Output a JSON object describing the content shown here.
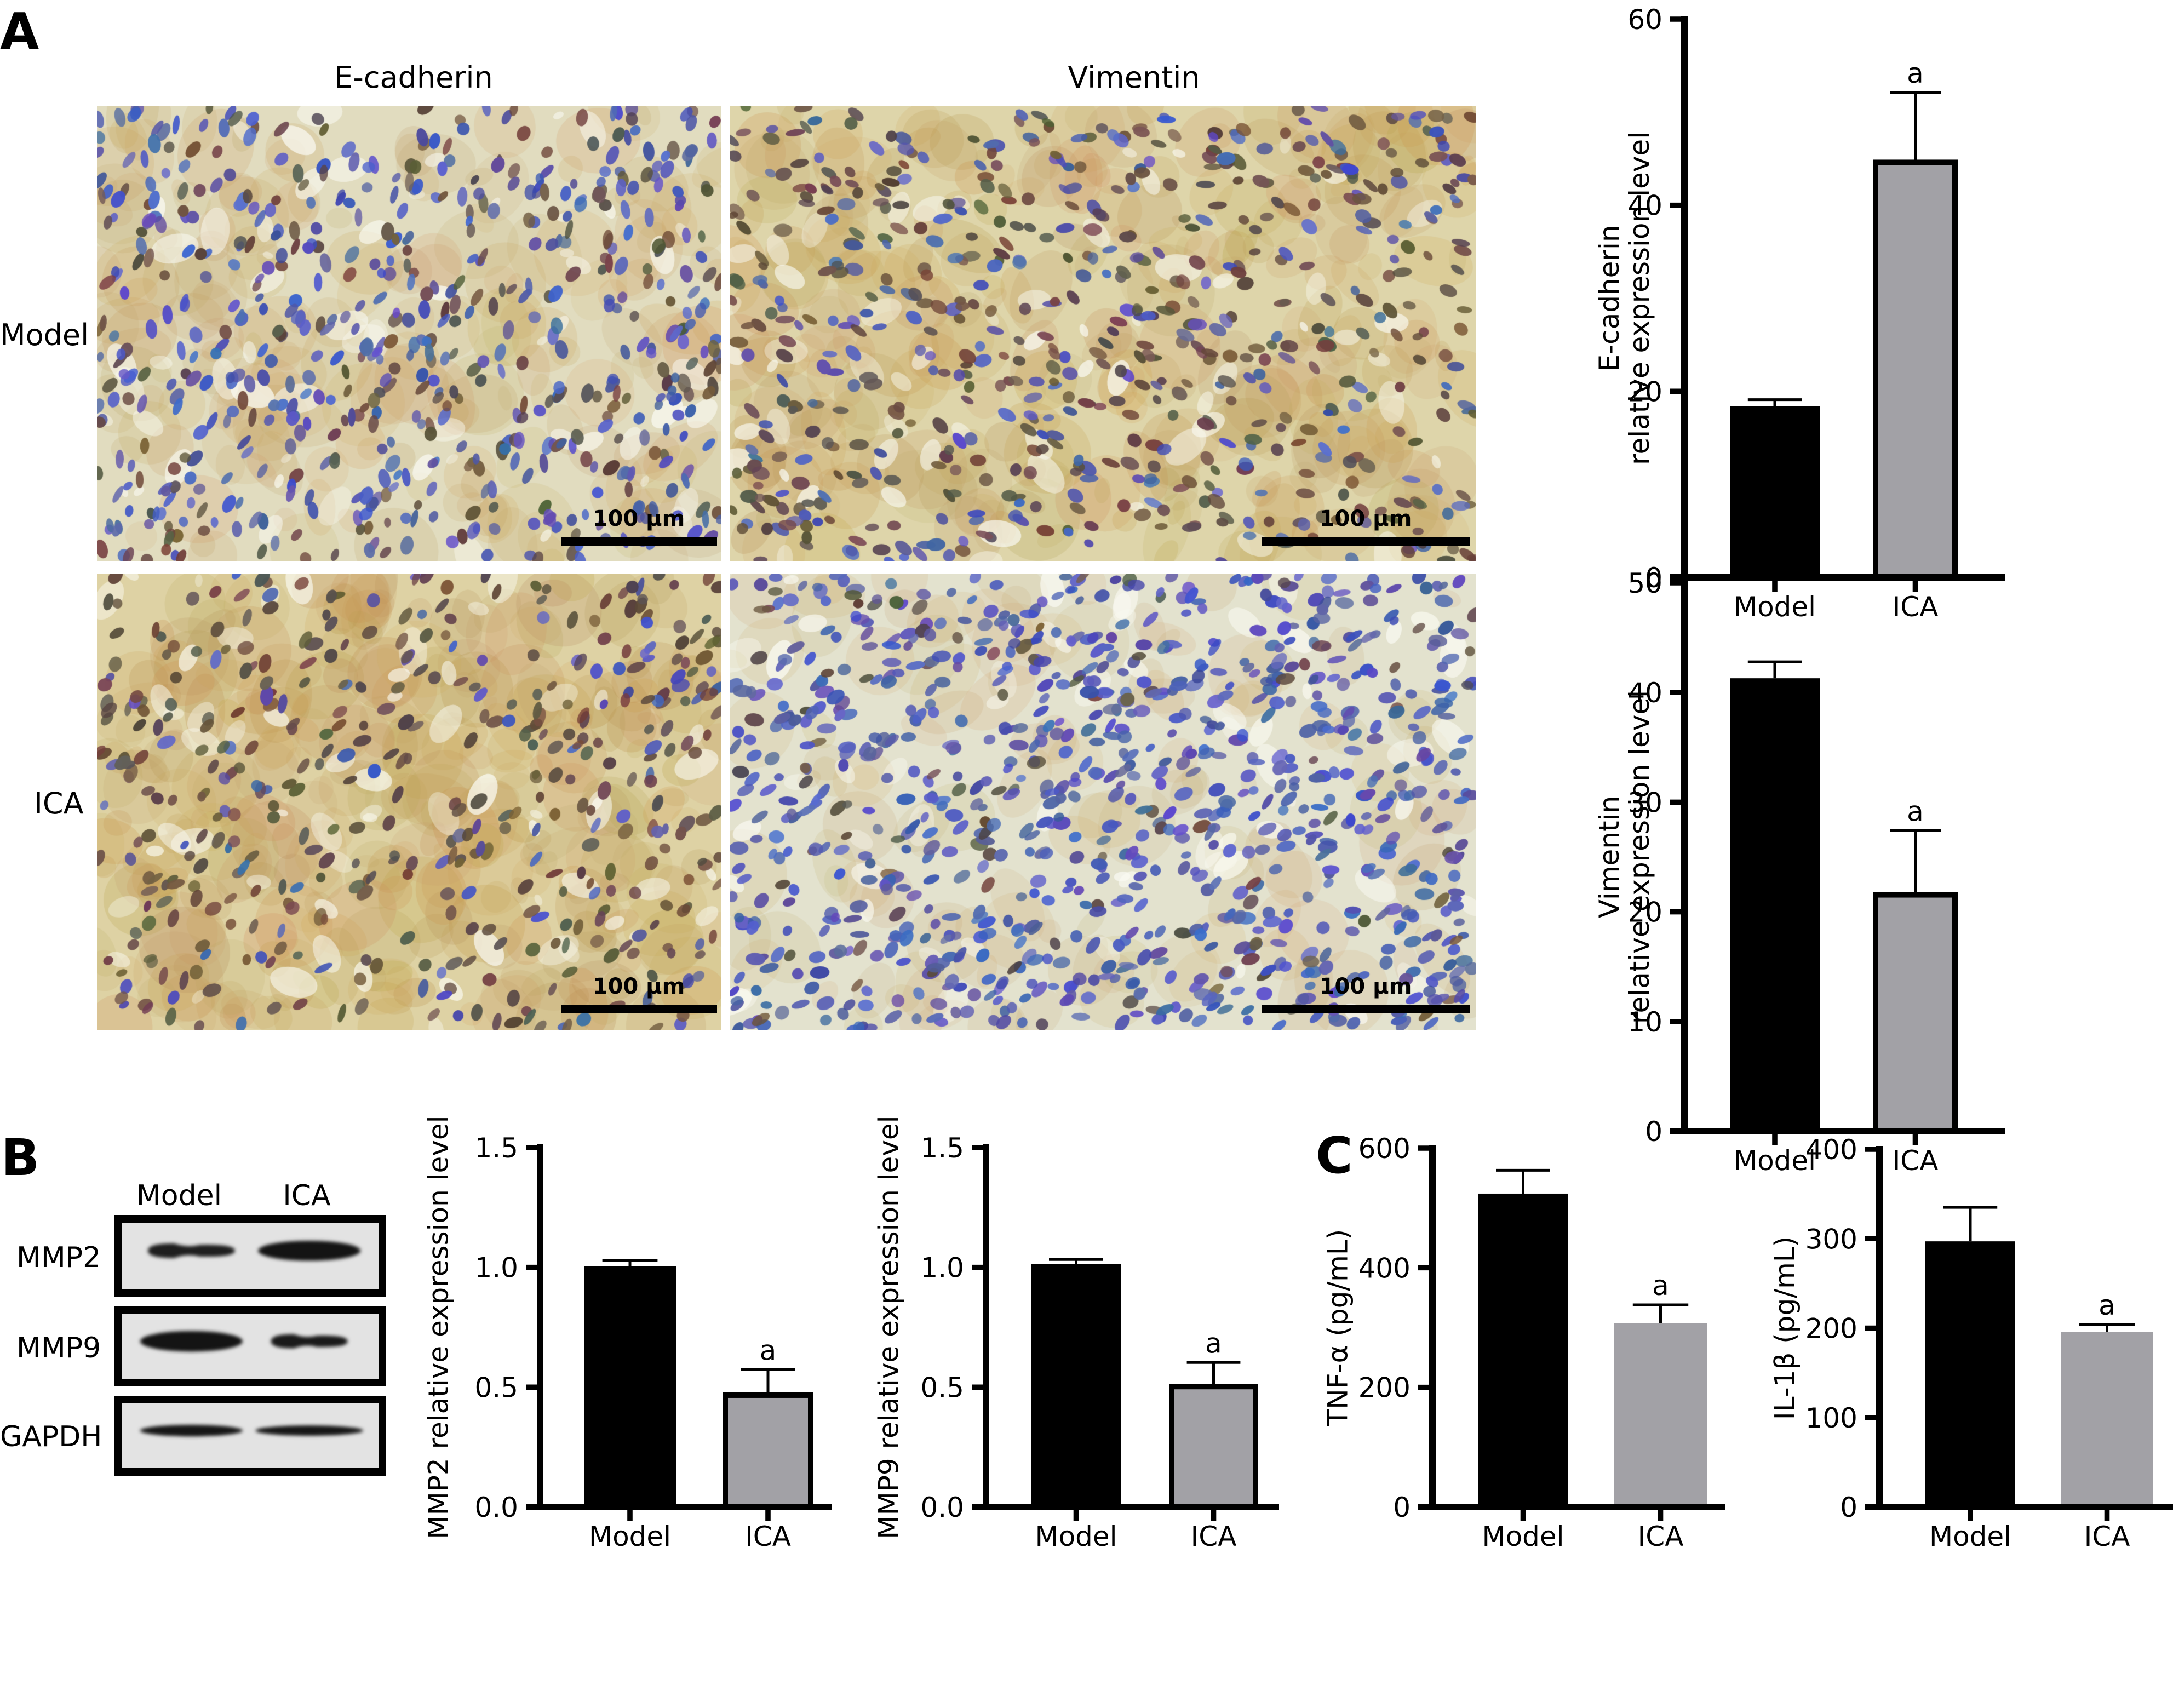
{
  "figure": {
    "panel_labels": {
      "A": "A",
      "B": "B",
      "C": "C"
    },
    "panel_a": {
      "column_headers": [
        "E-cadherin",
        "Vimentin"
      ],
      "row_labels": [
        "Model",
        "ICA"
      ],
      "scale_bar_label": "100 μm",
      "micrographs": [
        {
          "id": "ecad-model",
          "stain": "E-cadherin",
          "group": "Model",
          "brown": 0.35,
          "blue": 0.65,
          "density": 1.0,
          "seed": 11
        },
        {
          "id": "vim-model",
          "stain": "Vimentin",
          "group": "Model",
          "brown": 0.7,
          "blue": 0.3,
          "density": 0.85,
          "seed": 23
        },
        {
          "id": "ecad-ica",
          "stain": "E-cadherin",
          "group": "ICA",
          "brown": 0.8,
          "blue": 0.2,
          "density": 0.7,
          "seed": 37
        },
        {
          "id": "vim-ica",
          "stain": "Vimentin",
          "group": "ICA",
          "brown": 0.1,
          "blue": 0.9,
          "density": 1.25,
          "seed": 51
        }
      ]
    },
    "panel_b": {
      "lane_labels": [
        "Model",
        "ICA"
      ],
      "blot_rows": [
        {
          "label": "MMP2",
          "bands": [
            {
              "intensity": 0.75,
              "width": 0.34,
              "thickness": 0.22,
              "pinch": true
            },
            {
              "intensity": 1.0,
              "width": 0.4,
              "thickness": 0.3,
              "pinch": false
            }
          ]
        },
        {
          "label": "MMP9",
          "bands": [
            {
              "intensity": 1.0,
              "width": 0.4,
              "thickness": 0.32,
              "pinch": false
            },
            {
              "intensity": 0.85,
              "width": 0.3,
              "thickness": 0.22,
              "pinch": true
            }
          ]
        },
        {
          "label": "GAPDH",
          "bands": [
            {
              "intensity": 0.95,
              "width": 0.4,
              "thickness": 0.18,
              "pinch": false
            },
            {
              "intensity": 0.95,
              "width": 0.42,
              "thickness": 0.16,
              "pinch": false
            }
          ]
        }
      ]
    }
  },
  "colors": {
    "model_bar": "#000000",
    "ica_bar": "#a2a1a6",
    "axis": "#000000",
    "blot_background": "#e3e3e3"
  },
  "chart_data": [
    {
      "id": "ecad",
      "type": "bar",
      "title": "",
      "xlabel": "",
      "ylabel": [
        "E-cadherin",
        "relative expression level"
      ],
      "categories": [
        "Model",
        "ICA"
      ],
      "values": [
        18.4,
        44.9
      ],
      "error": [
        0.7,
        7.2
      ],
      "significance": [
        "",
        "a"
      ],
      "ylim": [
        0,
        60
      ],
      "yticks": [
        0,
        20,
        40,
        60
      ],
      "ytick_labels": [
        "0",
        "20",
        "40",
        "60"
      ],
      "grid": false,
      "legend": "none",
      "ica_outlined": true
    },
    {
      "id": "vim",
      "type": "bar",
      "title": "",
      "xlabel": "",
      "ylabel": [
        "Vimentin",
        "relative expression level"
      ],
      "categories": [
        "Model",
        "ICA"
      ],
      "values": [
        41.3,
        21.8
      ],
      "error": [
        1.5,
        5.6
      ],
      "significance": [
        "",
        "a"
      ],
      "ylim": [
        0,
        50
      ],
      "yticks": [
        0,
        10,
        20,
        30,
        40,
        50
      ],
      "ytick_labels": [
        "0",
        "10",
        "20",
        "30",
        "40",
        "50"
      ],
      "grid": false,
      "legend": "none",
      "ica_outlined": true
    },
    {
      "id": "mmp2",
      "type": "bar",
      "title": "",
      "xlabel": "",
      "ylabel": [
        "MMP2 relative expression level"
      ],
      "categories": [
        "Model",
        "ICA"
      ],
      "values": [
        1.005,
        0.478
      ],
      "error": [
        0.025,
        0.095
      ],
      "significance": [
        "",
        "a"
      ],
      "ylim": [
        0,
        1.5
      ],
      "yticks": [
        0,
        0.5,
        1.0,
        1.5
      ],
      "ytick_labels": [
        "0.0",
        "0.5",
        "1.0",
        "1.5"
      ],
      "grid": false,
      "legend": "none",
      "ica_outlined": true
    },
    {
      "id": "mmp9",
      "type": "bar",
      "title": "",
      "xlabel": "",
      "ylabel": [
        "MMP9 relative expression level"
      ],
      "categories": [
        "Model",
        "ICA"
      ],
      "values": [
        1.015,
        0.514
      ],
      "error": [
        0.018,
        0.089
      ],
      "significance": [
        "",
        "a"
      ],
      "ylim": [
        0,
        1.5
      ],
      "yticks": [
        0,
        0.5,
        1.0,
        1.5
      ],
      "ytick_labels": [
        "0.0",
        "0.5",
        "1.0",
        "1.5"
      ],
      "grid": false,
      "legend": "none",
      "ica_outlined": true
    },
    {
      "id": "tnf",
      "type": "bar",
      "title": "",
      "xlabel": "",
      "ylabel": [
        "TNF-α (pg/mL)"
      ],
      "categories": [
        "Model",
        "ICA"
      ],
      "values": [
        524,
        307
      ],
      "error": [
        39,
        31
      ],
      "significance": [
        "",
        "a"
      ],
      "ylim": [
        0,
        600
      ],
      "yticks": [
        0,
        200,
        400,
        600
      ],
      "ytick_labels": [
        "0",
        "200",
        "400",
        "600"
      ],
      "grid": false,
      "legend": "none",
      "ica_outlined": false
    },
    {
      "id": "il1b",
      "type": "bar",
      "title": "",
      "xlabel": "",
      "ylabel": [
        "IL-1β (pg/mL)"
      ],
      "categories": [
        "Model",
        "ICA"
      ],
      "values": [
        297,
        196
      ],
      "error": [
        38,
        8
      ],
      "significance": [
        "",
        "a"
      ],
      "ylim": [
        0,
        400
      ],
      "yticks": [
        0,
        100,
        200,
        300,
        400
      ],
      "ytick_labels": [
        "0",
        "100",
        "200",
        "300",
        "400"
      ],
      "grid": false,
      "legend": "none",
      "ica_outlined": false
    }
  ]
}
